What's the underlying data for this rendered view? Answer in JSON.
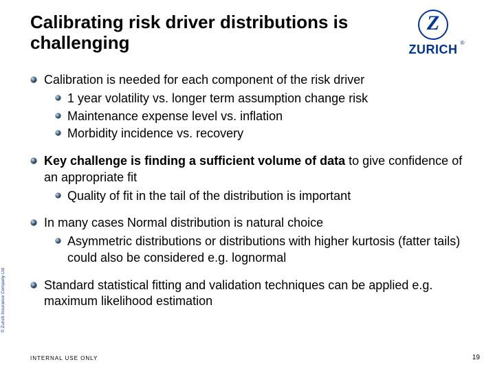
{
  "title": "Calibrating risk driver distributions is challenging",
  "logo": {
    "letter": "Z",
    "word": "ZURICH",
    "reg": "®"
  },
  "blocks": [
    {
      "text": "Calibration is needed for each component of the risk driver",
      "bold": false,
      "children": [
        "1 year volatility vs. longer term assumption change risk",
        "Maintenance expense level vs. inflation",
        "Morbidity incidence vs. recovery"
      ]
    },
    {
      "bold_prefix": "Key challenge is finding a sufficient volume of data",
      "rest": " to give confidence of an appropriate fit",
      "children": [
        "Quality of fit in the tail of the distribution is important"
      ]
    },
    {
      "text": "In many cases Normal distribution is natural choice",
      "bold": false,
      "children": [
        "Asymmetric distributions or distributions with higher kurtosis (fatter tails) could also be considered e.g. lognormal"
      ]
    },
    {
      "text": "Standard statistical fitting and validation techniques can be applied e.g. maximum likelihood estimation",
      "bold": false,
      "children": []
    }
  ],
  "footer": "INTERNAL USE ONLY",
  "page": "19",
  "copyright": "© Zurich Insurance Company Ltd",
  "colors": {
    "brand": "#003399",
    "bullet_fill": "#4a6b8a",
    "bullet_dark": "#1a2a3a"
  }
}
